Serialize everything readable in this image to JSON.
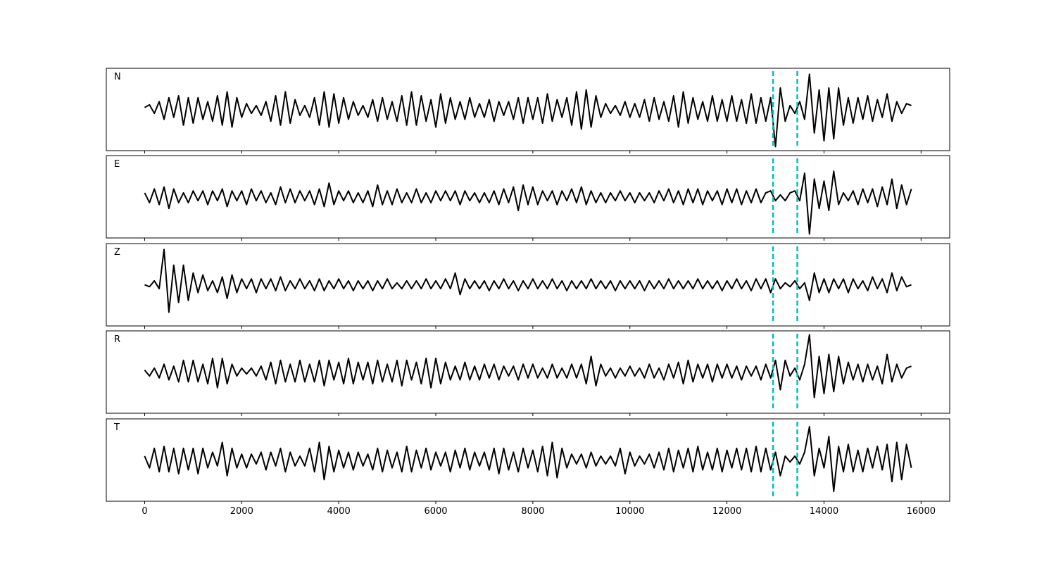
{
  "chart_data": {
    "type": "line",
    "layout": "stacked",
    "line_color": "#000000",
    "x": [
      0,
      100,
      200,
      300,
      400,
      500,
      600,
      700,
      800,
      900,
      1000,
      1100,
      1200,
      1300,
      1400,
      1500,
      1600,
      1700,
      1800,
      1900,
      2000,
      2100,
      2200,
      2300,
      2400,
      2500,
      2600,
      2700,
      2800,
      2900,
      3000,
      3100,
      3200,
      3300,
      3400,
      3500,
      3600,
      3700,
      3800,
      3900,
      4000,
      4100,
      4200,
      4300,
      4400,
      4500,
      4600,
      4700,
      4800,
      4900,
      5000,
      5100,
      5200,
      5300,
      5400,
      5500,
      5600,
      5700,
      5800,
      5900,
      6000,
      6100,
      6200,
      6300,
      6400,
      6500,
      6600,
      6700,
      6800,
      6900,
      7000,
      7100,
      7200,
      7300,
      7400,
      7500,
      7600,
      7700,
      7800,
      7900,
      8000,
      8100,
      8200,
      8300,
      8400,
      8500,
      8600,
      8700,
      8800,
      8900,
      9000,
      9100,
      9200,
      9300,
      9400,
      9500,
      9600,
      9700,
      9800,
      9900,
      10000,
      10100,
      10200,
      10300,
      10400,
      10500,
      10600,
      10700,
      10800,
      10900,
      11000,
      11100,
      11200,
      11300,
      11400,
      11500,
      11600,
      11700,
      11800,
      11900,
      12000,
      12100,
      12200,
      12300,
      12400,
      12500,
      12600,
      12700,
      12800,
      12900,
      13000,
      13100,
      13200,
      13300,
      13400,
      13500,
      13600,
      13700,
      13800,
      13900,
      14000,
      14100,
      14200,
      14300,
      14400,
      14500,
      14600,
      14700,
      14800,
      14900,
      15000,
      15100,
      15200,
      15300,
      15400,
      15500,
      15600,
      15700,
      15800
    ],
    "series": [
      {
        "name": "N",
        "values": [
          0.05,
          0.12,
          -0.1,
          0.2,
          -0.25,
          0.3,
          -0.2,
          0.35,
          -0.4,
          0.3,
          -0.35,
          0.3,
          -0.25,
          0.2,
          -0.3,
          0.35,
          -0.4,
          0.45,
          -0.45,
          0.3,
          -0.2,
          0.15,
          -0.1,
          0.1,
          -0.15,
          0.2,
          -0.3,
          0.35,
          -0.4,
          0.45,
          -0.35,
          0.25,
          -0.15,
          0.1,
          -0.2,
          0.3,
          -0.4,
          0.45,
          -0.45,
          0.4,
          -0.35,
          0.3,
          -0.25,
          0.2,
          -0.15,
          0.1,
          -0.2,
          0.25,
          -0.3,
          0.3,
          -0.25,
          0.2,
          -0.3,
          0.35,
          -0.4,
          0.45,
          -0.4,
          0.35,
          -0.3,
          0.25,
          -0.45,
          0.4,
          -0.35,
          0.3,
          -0.25,
          0.2,
          -0.25,
          0.3,
          -0.2,
          0.15,
          -0.2,
          0.25,
          -0.3,
          0.2,
          -0.15,
          0.2,
          -0.25,
          0.3,
          -0.35,
          0.3,
          -0.25,
          0.3,
          -0.35,
          0.4,
          -0.3,
          0.25,
          -0.2,
          0.3,
          -0.4,
          0.45,
          -0.5,
          0.5,
          -0.45,
          0.35,
          -0.2,
          0.15,
          -0.1,
          0.1,
          -0.15,
          0.2,
          -0.2,
          0.15,
          -0.2,
          0.25,
          -0.3,
          0.3,
          -0.25,
          0.2,
          -0.3,
          0.35,
          -0.45,
          0.45,
          -0.35,
          0.3,
          -0.25,
          0.2,
          -0.3,
          0.35,
          -0.3,
          0.25,
          -0.3,
          0.35,
          -0.3,
          0.25,
          -0.35,
          0.4,
          -0.35,
          0.3,
          -0.3,
          0.3,
          -0.95,
          0.55,
          -0.3,
          0.1,
          -0.1,
          0.2,
          -0.25,
          0.9,
          -0.6,
          0.5,
          -0.8,
          0.55,
          -0.75,
          0.55,
          -0.4,
          0.3,
          -0.35,
          0.3,
          -0.25,
          0.35,
          -0.3,
          0.25,
          -0.2,
          0.4,
          -0.3,
          0.2,
          -0.1,
          0.15,
          0.1
        ]
      },
      {
        "name": "E",
        "values": [
          0.1,
          -0.15,
          0.2,
          -0.2,
          0.25,
          -0.3,
          0.2,
          -0.15,
          0.1,
          -0.15,
          0.15,
          -0.1,
          0.15,
          -0.2,
          0.15,
          -0.1,
          0.2,
          -0.25,
          0.15,
          -0.1,
          0.15,
          -0.2,
          0.2,
          -0.1,
          0.15,
          -0.15,
          0.1,
          -0.2,
          0.25,
          -0.15,
          0.2,
          -0.15,
          0.15,
          -0.1,
          0.15,
          -0.2,
          0.2,
          -0.25,
          0.35,
          -0.2,
          0.15,
          -0.1,
          0.15,
          -0.15,
          0.1,
          -0.15,
          0.15,
          -0.25,
          0.3,
          -0.2,
          0.15,
          -0.2,
          0.2,
          -0.15,
          0.1,
          -0.15,
          0.2,
          -0.15,
          0.1,
          -0.15,
          0.15,
          -0.1,
          0.15,
          -0.1,
          0.15,
          -0.2,
          0.15,
          -0.1,
          0.1,
          -0.15,
          0.1,
          -0.15,
          0.15,
          -0.2,
          0.2,
          -0.15,
          0.25,
          -0.35,
          0.3,
          -0.2,
          0.25,
          -0.2,
          0.15,
          -0.1,
          0.15,
          -0.2,
          0.15,
          -0.1,
          0.2,
          -0.15,
          0.25,
          -0.2,
          0.15,
          -0.15,
          0.1,
          -0.15,
          0.1,
          -0.1,
          0.15,
          -0.1,
          0.1,
          -0.15,
          0.1,
          -0.1,
          0.1,
          -0.15,
          0.15,
          -0.1,
          0.2,
          -0.15,
          0.15,
          -0.2,
          0.2,
          -0.15,
          0.2,
          -0.2,
          0.15,
          -0.1,
          0.15,
          -0.2,
          0.2,
          -0.15,
          0.2,
          -0.2,
          0.15,
          -0.15,
          0.2,
          -0.15,
          0.1,
          0.15,
          -0.1,
          0.05,
          -0.1,
          0.1,
          0.15,
          -0.1,
          0.6,
          -0.95,
          0.45,
          -0.3,
          0.4,
          -0.35,
          0.65,
          -0.2,
          0.1,
          -0.1,
          0.15,
          -0.2,
          0.2,
          -0.15,
          0.2,
          -0.25,
          0.25,
          -0.2,
          0.45,
          -0.3,
          0.3,
          -0.2,
          0.2
        ]
      },
      {
        "name": "Z",
        "values": [
          0.0,
          -0.05,
          0.1,
          -0.1,
          0.9,
          -0.7,
          0.5,
          -0.45,
          0.5,
          -0.4,
          0.3,
          -0.2,
          0.25,
          -0.15,
          0.1,
          -0.2,
          0.2,
          -0.35,
          0.25,
          -0.2,
          0.15,
          -0.1,
          0.15,
          -0.2,
          0.15,
          -0.1,
          0.15,
          -0.15,
          0.2,
          -0.15,
          0.1,
          -0.1,
          0.15,
          -0.1,
          0.1,
          -0.15,
          0.15,
          -0.15,
          0.1,
          -0.1,
          0.15,
          -0.1,
          0.1,
          -0.15,
          0.1,
          -0.1,
          0.1,
          -0.15,
          0.1,
          -0.1,
          0.15,
          -0.1,
          0.05,
          -0.1,
          0.1,
          -0.1,
          0.1,
          -0.1,
          0.15,
          -0.1,
          0.1,
          -0.1,
          0.15,
          -0.1,
          0.3,
          -0.25,
          0.15,
          -0.1,
          0.1,
          -0.1,
          0.1,
          -0.15,
          0.1,
          -0.1,
          0.15,
          -0.1,
          0.1,
          -0.15,
          0.1,
          -0.1,
          0.15,
          -0.1,
          0.1,
          -0.1,
          0.15,
          -0.1,
          0.1,
          -0.15,
          0.1,
          -0.1,
          0.1,
          -0.1,
          0.15,
          -0.1,
          0.1,
          -0.1,
          0.1,
          -0.15,
          0.1,
          -0.1,
          0.1,
          -0.1,
          0.1,
          -0.15,
          0.1,
          -0.1,
          0.1,
          -0.1,
          0.15,
          -0.1,
          0.1,
          -0.1,
          0.1,
          -0.1,
          0.15,
          -0.1,
          0.1,
          -0.1,
          0.1,
          -0.15,
          0.1,
          -0.1,
          0.15,
          -0.1,
          0.1,
          -0.15,
          0.15,
          -0.1,
          0.15,
          -0.2,
          0.15,
          -0.1,
          0.05,
          -0.05,
          0.1,
          -0.1,
          0.05,
          -0.4,
          0.3,
          -0.2,
          0.15,
          -0.2,
          0.15,
          -0.1,
          0.15,
          -0.2,
          0.15,
          -0.1,
          0.1,
          -0.15,
          0.2,
          -0.1,
          0.15,
          -0.2,
          0.3,
          -0.15,
          0.2,
          -0.05,
          0.0
        ]
      },
      {
        "name": "R",
        "values": [
          0.05,
          -0.1,
          0.1,
          -0.15,
          0.2,
          -0.2,
          0.15,
          -0.25,
          0.3,
          -0.25,
          0.3,
          -0.25,
          0.2,
          -0.3,
          0.35,
          -0.4,
          0.35,
          -0.3,
          0.2,
          -0.1,
          0.1,
          -0.05,
          0.1,
          -0.1,
          0.15,
          -0.2,
          0.25,
          -0.3,
          0.3,
          -0.25,
          0.2,
          -0.25,
          0.3,
          -0.25,
          0.2,
          -0.25,
          0.3,
          -0.35,
          0.3,
          -0.2,
          0.25,
          -0.3,
          0.35,
          -0.3,
          0.25,
          -0.2,
          0.25,
          -0.3,
          0.3,
          -0.25,
          0.2,
          -0.25,
          0.3,
          -0.35,
          0.3,
          -0.2,
          0.25,
          -0.3,
          0.35,
          -0.4,
          0.35,
          -0.3,
          0.25,
          -0.2,
          0.15,
          -0.2,
          0.25,
          -0.2,
          0.15,
          -0.2,
          0.2,
          -0.15,
          0.2,
          -0.2,
          0.15,
          -0.1,
          0.15,
          -0.2,
          0.2,
          -0.15,
          0.2,
          -0.15,
          0.1,
          -0.15,
          0.2,
          -0.15,
          0.1,
          -0.15,
          0.2,
          -0.15,
          0.2,
          -0.3,
          0.4,
          -0.35,
          0.2,
          -0.1,
          0.1,
          -0.15,
          0.1,
          -0.1,
          0.15,
          -0.1,
          0.1,
          -0.15,
          0.2,
          -0.15,
          0.1,
          -0.2,
          0.2,
          -0.15,
          0.25,
          -0.3,
          0.3,
          -0.25,
          0.2,
          -0.15,
          0.2,
          -0.25,
          0.2,
          -0.15,
          0.2,
          -0.15,
          0.15,
          -0.2,
          0.15,
          -0.1,
          0.15,
          -0.2,
          0.2,
          -0.15,
          0.3,
          -0.45,
          0.3,
          -0.1,
          0.1,
          -0.2,
          0.2,
          0.95,
          -0.65,
          0.4,
          -0.55,
          0.45,
          -0.5,
          0.4,
          -0.3,
          0.25,
          -0.2,
          0.2,
          -0.25,
          0.2,
          -0.2,
          0.15,
          -0.3,
          0.45,
          -0.25,
          0.2,
          -0.15,
          0.1,
          0.15
        ]
      },
      {
        "name": "T",
        "values": [
          0.1,
          -0.2,
          0.3,
          -0.3,
          0.35,
          -0.3,
          0.3,
          -0.35,
          0.3,
          -0.25,
          0.3,
          -0.35,
          0.3,
          -0.2,
          0.2,
          -0.15,
          0.45,
          -0.4,
          0.3,
          -0.2,
          0.15,
          -0.2,
          0.15,
          -0.1,
          0.2,
          -0.25,
          0.2,
          -0.15,
          0.3,
          -0.3,
          0.2,
          -0.15,
          0.1,
          -0.15,
          0.3,
          -0.3,
          0.45,
          -0.5,
          0.35,
          -0.3,
          0.25,
          -0.2,
          0.2,
          -0.25,
          0.2,
          -0.15,
          0.15,
          -0.25,
          0.3,
          -0.3,
          0.25,
          -0.2,
          0.2,
          -0.3,
          0.35,
          -0.3,
          0.25,
          -0.2,
          0.3,
          -0.25,
          0.2,
          -0.15,
          0.2,
          -0.3,
          0.25,
          -0.2,
          0.3,
          -0.25,
          0.2,
          -0.15,
          0.2,
          -0.25,
          0.3,
          -0.35,
          0.3,
          -0.25,
          0.2,
          -0.3,
          0.3,
          -0.2,
          0.25,
          -0.3,
          0.35,
          -0.4,
          0.45,
          -0.45,
          0.3,
          -0.2,
          0.15,
          -0.1,
          0.15,
          -0.2,
          0.2,
          -0.15,
          0.1,
          -0.1,
          0.1,
          -0.15,
          0.3,
          -0.35,
          0.2,
          -0.15,
          0.1,
          -0.1,
          0.15,
          -0.2,
          0.2,
          -0.25,
          0.3,
          -0.3,
          0.25,
          -0.2,
          0.3,
          -0.3,
          0.35,
          -0.25,
          0.2,
          -0.25,
          0.3,
          -0.3,
          0.25,
          -0.2,
          0.3,
          -0.25,
          0.3,
          -0.3,
          0.35,
          -0.3,
          0.3,
          -0.25,
          0.2,
          -0.4,
          0.1,
          -0.05,
          0.1,
          -0.1,
          0.2,
          0.85,
          -0.4,
          0.3,
          -0.2,
          0.6,
          -0.8,
          0.35,
          -0.3,
          0.4,
          -0.3,
          0.25,
          -0.3,
          0.3,
          -0.2,
          0.35,
          -0.25,
          0.4,
          -0.55,
          0.45,
          -0.5,
          0.4,
          -0.2
        ]
      }
    ],
    "ylim": [
      -1.05,
      1.05
    ],
    "xlim": [
      -790,
      16590
    ],
    "xticks": [
      0,
      2000,
      4000,
      6000,
      8000,
      10000,
      12000,
      14000,
      16000
    ],
    "markers": {
      "values": [
        12950,
        13450
      ],
      "color": "#00bfbf",
      "style": "dashed"
    }
  }
}
